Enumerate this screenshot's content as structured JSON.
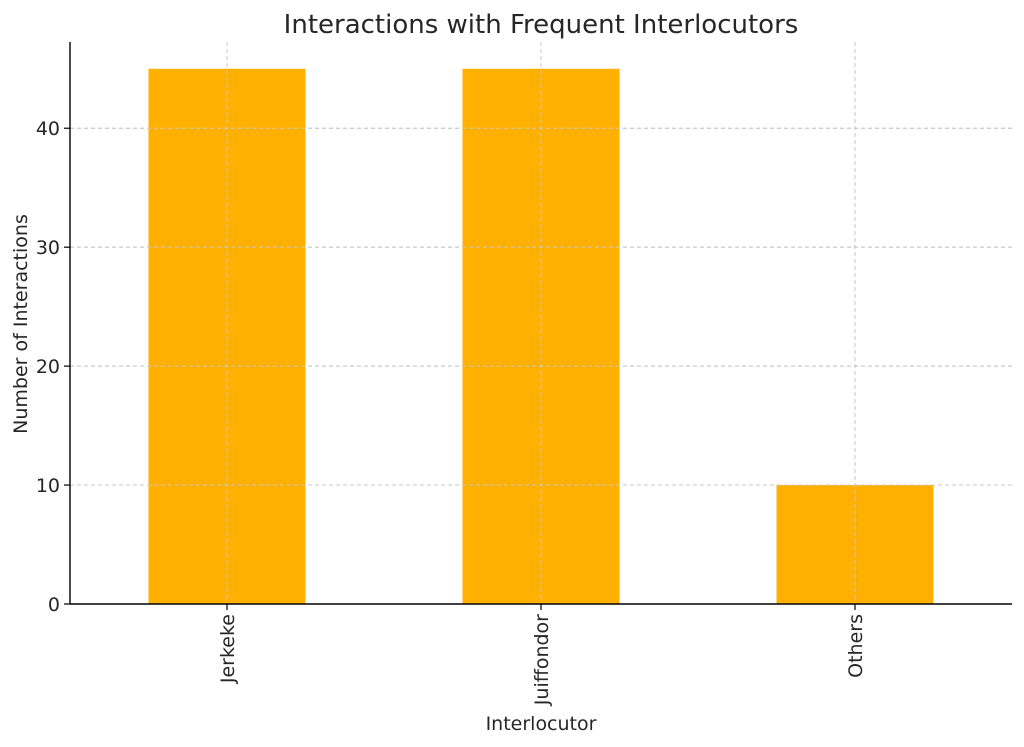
{
  "chart_data": {
    "type": "bar",
    "title": "Interactions with Frequent Interlocutors",
    "xlabel": "Interlocutor",
    "ylabel": "Number of Interactions",
    "categories": [
      "Jerkeke",
      "Juiffondor",
      "Others"
    ],
    "values": [
      45,
      45,
      10
    ],
    "ylim": [
      0,
      47.25
    ],
    "yticks": [
      0,
      10,
      20,
      30,
      40
    ],
    "grid": true,
    "bar_color": "#FFB000"
  }
}
